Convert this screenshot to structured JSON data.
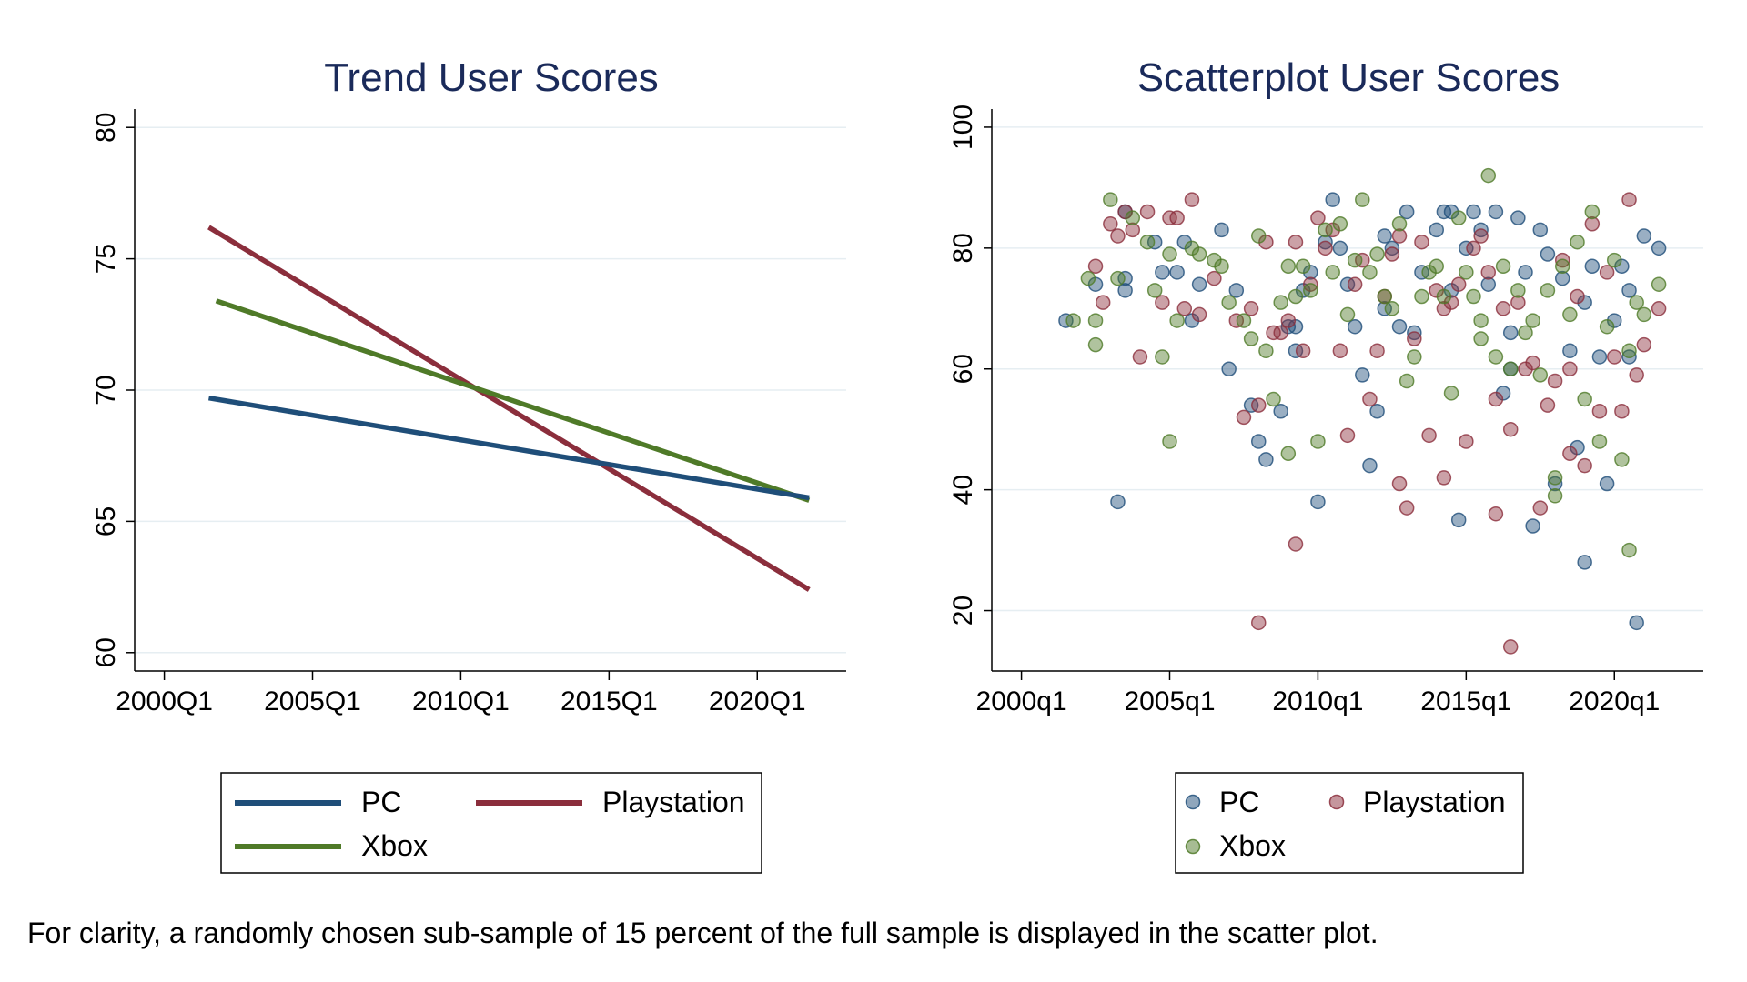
{
  "caption": "For clarity, a randomly chosen sub-sample of 15 percent of the full sample is displayed in the scatter plot.",
  "colors": {
    "PC": "#1f4e79",
    "Playstation": "#8b2e3c",
    "Xbox": "#4f7a28",
    "title": "#1a2a5a",
    "grid": "#e6eef2"
  },
  "chart_data": [
    {
      "type": "line",
      "title": "Trend User Scores",
      "xlabel": "",
      "ylabel": "",
      "xlim": [
        1999.0,
        2023.0
      ],
      "ylim": [
        59.3,
        80.7
      ],
      "xticks": [
        2000,
        2005,
        2010,
        2015,
        2020
      ],
      "xtick_labels": [
        "2000Q1",
        "2005Q1",
        "2010Q1",
        "2015Q1",
        "2020Q1"
      ],
      "yticks": [
        60,
        65,
        70,
        75,
        80
      ],
      "ytick_labels": [
        "60",
        "65",
        "70",
        "75",
        "80"
      ],
      "grid": true,
      "legend": "bottom",
      "series": [
        {
          "name": "PC",
          "x": [
            2001.5,
            2021.75
          ],
          "y": [
            69.7,
            65.9
          ]
        },
        {
          "name": "Playstation",
          "x": [
            2001.5,
            2021.75
          ],
          "y": [
            76.2,
            62.4
          ]
        },
        {
          "name": "Xbox",
          "x": [
            2001.75,
            2021.75
          ],
          "y": [
            73.4,
            65.8
          ]
        }
      ]
    },
    {
      "type": "scatter",
      "title": "Scatterplot User Scores",
      "xlabel": "",
      "ylabel": "",
      "xlim": [
        1999.0,
        2023.0
      ],
      "ylim": [
        10,
        103
      ],
      "xticks": [
        2000,
        2005,
        2010,
        2015,
        2020
      ],
      "xtick_labels": [
        "2000q1",
        "2005q1",
        "2010q1",
        "2015q1",
        "2020q1"
      ],
      "yticks": [
        20,
        40,
        60,
        80,
        100
      ],
      "ytick_labels": [
        "20",
        "40",
        "60",
        "80",
        "100"
      ],
      "grid": true,
      "legend": "bottom",
      "series": [
        {
          "name": "PC",
          "x": [
            2001.5,
            2002.5,
            2003.25,
            2003.5,
            2003.5,
            2004.5,
            2004.75,
            2005.25,
            2005.5,
            2005.75,
            2006.0,
            2006.75,
            2007.0,
            2007.25,
            2007.75,
            2008.0,
            2008.25,
            2008.75,
            2009.0,
            2009.25,
            2009.5,
            2009.75,
            2010.0,
            2010.25,
            2010.5,
            2010.75,
            2011.0,
            2011.25,
            2011.5,
            2011.75,
            2012.0,
            2012.25,
            2012.5,
            2012.75,
            2013.0,
            2013.25,
            2013.5,
            2014.0,
            2014.25,
            2014.5,
            2014.75,
            2015.0,
            2015.25,
            2015.5,
            2015.75,
            2016.0,
            2016.25,
            2016.5,
            2016.75,
            2017.0,
            2017.25,
            2017.5,
            2017.75,
            2018.0,
            2018.25,
            2018.5,
            2018.75,
            2019.0,
            2019.25,
            2019.5,
            2019.75,
            2020.0,
            2020.25,
            2020.5,
            2020.75,
            2021.0,
            2021.5,
            2003.5,
            2009.25,
            2012.25,
            2014.5,
            2016.5,
            2019.0,
            2020.5
          ],
          "y": [
            68,
            74,
            38,
            75,
            73,
            81,
            76,
            76,
            81,
            68,
            74,
            83,
            60,
            73,
            54,
            48,
            45,
            53,
            67,
            63,
            73,
            76,
            38,
            81,
            88,
            80,
            74,
            67,
            59,
            44,
            53,
            70,
            80,
            67,
            86,
            66,
            76,
            83,
            86,
            73,
            35,
            80,
            86,
            83,
            74,
            86,
            56,
            60,
            85,
            76,
            34,
            83,
            79,
            41,
            75,
            63,
            47,
            28,
            77,
            62,
            41,
            68,
            77,
            73,
            18,
            82,
            80,
            86,
            67,
            82,
            86,
            66,
            71,
            62
          ]
        },
        {
          "name": "Playstation",
          "x": [
            2002.5,
            2002.75,
            2003.0,
            2003.25,
            2003.5,
            2003.75,
            2004.0,
            2004.25,
            2004.75,
            2005.0,
            2005.25,
            2005.5,
            2005.75,
            2006.0,
            2006.5,
            2007.25,
            2007.5,
            2007.75,
            2008.0,
            2008.25,
            2008.5,
            2008.75,
            2009.0,
            2009.25,
            2009.5,
            2009.75,
            2010.0,
            2010.25,
            2010.5,
            2010.75,
            2011.0,
            2011.25,
            2011.5,
            2011.75,
            2012.0,
            2012.25,
            2012.5,
            2012.75,
            2013.0,
            2013.25,
            2013.5,
            2013.75,
            2014.0,
            2014.25,
            2014.5,
            2014.75,
            2015.0,
            2015.25,
            2015.5,
            2015.75,
            2016.0,
            2016.25,
            2016.5,
            2016.75,
            2017.0,
            2017.25,
            2017.5,
            2017.75,
            2018.0,
            2018.25,
            2018.5,
            2018.75,
            2019.0,
            2019.25,
            2019.5,
            2019.75,
            2020.0,
            2020.25,
            2020.5,
            2020.75,
            2021.0,
            2021.5,
            2008.0,
            2009.25,
            2012.75,
            2014.25,
            2016.0,
            2016.5,
            2018.5
          ],
          "y": [
            77,
            71,
            84,
            82,
            86,
            83,
            62,
            86,
            71,
            85,
            85,
            70,
            88,
            69,
            75,
            68,
            52,
            70,
            54,
            81,
            66,
            66,
            68,
            81,
            63,
            74,
            85,
            80,
            83,
            63,
            49,
            74,
            78,
            55,
            63,
            72,
            79,
            82,
            37,
            65,
            81,
            49,
            73,
            70,
            71,
            74,
            48,
            80,
            82,
            76,
            55,
            70,
            50,
            71,
            60,
            61,
            37,
            54,
            58,
            78,
            46,
            72,
            44,
            84,
            53,
            76,
            62,
            53,
            88,
            59,
            64,
            70,
            18,
            31,
            41,
            42,
            36,
            14,
            60
          ]
        },
        {
          "name": "Xbox",
          "x": [
            2001.75,
            2002.25,
            2002.5,
            2002.5,
            2003.0,
            2003.25,
            2003.75,
            2004.25,
            2004.5,
            2004.75,
            2005.0,
            2005.25,
            2005.75,
            2006.0,
            2006.5,
            2006.75,
            2007.0,
            2007.5,
            2007.75,
            2008.0,
            2008.25,
            2008.5,
            2008.75,
            2009.0,
            2009.25,
            2009.5,
            2009.75,
            2010.0,
            2010.25,
            2010.5,
            2010.75,
            2011.0,
            2011.25,
            2011.5,
            2011.75,
            2012.0,
            2012.25,
            2012.5,
            2012.75,
            2013.0,
            2013.25,
            2013.5,
            2013.75,
            2014.0,
            2014.25,
            2014.5,
            2014.75,
            2015.0,
            2015.25,
            2015.5,
            2015.75,
            2016.0,
            2016.25,
            2016.5,
            2016.75,
            2017.0,
            2017.25,
            2017.5,
            2017.75,
            2018.0,
            2018.25,
            2018.5,
            2018.75,
            2019.0,
            2019.25,
            2019.5,
            2019.75,
            2020.0,
            2020.25,
            2020.5,
            2020.75,
            2021.0,
            2021.5,
            2005.0,
            2009.0,
            2015.5,
            2018.0,
            2020.5
          ],
          "y": [
            68,
            75,
            64,
            68,
            88,
            75,
            85,
            81,
            73,
            62,
            79,
            68,
            80,
            79,
            78,
            77,
            71,
            68,
            65,
            82,
            63,
            55,
            71,
            77,
            72,
            77,
            73,
            48,
            83,
            76,
            84,
            69,
            78,
            88,
            76,
            79,
            72,
            70,
            84,
            58,
            62,
            72,
            76,
            77,
            72,
            56,
            85,
            76,
            72,
            68,
            92,
            62,
            77,
            60,
            73,
            66,
            68,
            59,
            73,
            42,
            77,
            69,
            81,
            55,
            86,
            48,
            67,
            78,
            45,
            30,
            71,
            69,
            74,
            48,
            46,
            65,
            39,
            63
          ]
        }
      ]
    }
  ]
}
